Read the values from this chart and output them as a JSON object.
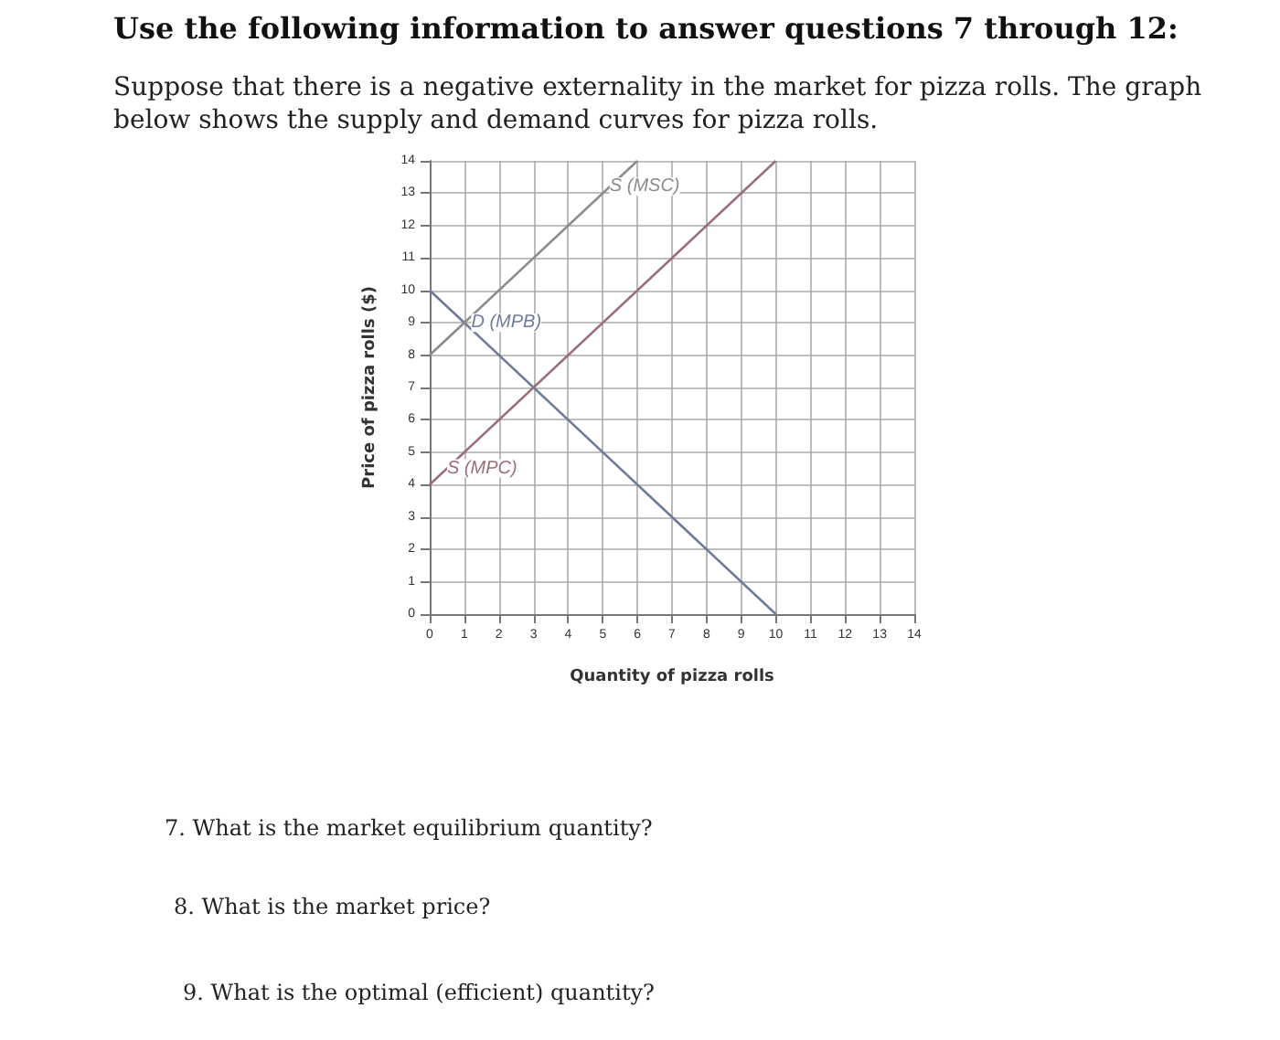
{
  "chart_data": {
    "type": "line",
    "title": "Use the following information to answer questions 7 through 12:",
    "subtitle": "Suppose that there is a negative externality in the market for pizza rolls. The graph below shows the supply and demand curves for pizza rolls.",
    "xlabel": "Quantity of pizza rolls",
    "ylabel": "Price of pizza rolls ($)",
    "series": [
      {
        "color": "#6f7c99",
        "x": [
          0,
          10
        ],
        "values": [
          10,
          0
        ]
      },
      {
        "color": "#9c6f78",
        "x": [
          0,
          10
        ],
        "values": [
          4,
          14
        ]
      },
      {
        "color": "#8c8c8c",
        "x": [
          0,
          6
        ],
        "values": [
          8,
          14
        ]
      }
    ],
    "xlim": [
      0,
      14
    ],
    "ylim": [
      0,
      14
    ],
    "xticks": [
      0,
      1,
      2,
      3,
      4,
      5,
      6,
      7,
      8,
      9,
      10,
      11,
      12,
      13,
      14
    ],
    "yticks": [
      0,
      1,
      2,
      3,
      4,
      5,
      6,
      7,
      8,
      9,
      10,
      11,
      12,
      13,
      14
    ],
    "grid": true,
    "marker": "none",
    "line_style": "solid",
    "annotations": [
      {
        "text": "D (MPB)",
        "x": 1.2,
        "y": 9
      },
      {
        "text": "S (MPC)",
        "x": 0.5,
        "y": 4.5
      },
      {
        "text": "S (MSC)",
        "x": 5.2,
        "y": 13.2
      },
      "7. What is the market equilibrium quantity?",
      "8. What is the market price?",
      "9. What is the optimal (efficient) quantity?"
    ]
  }
}
